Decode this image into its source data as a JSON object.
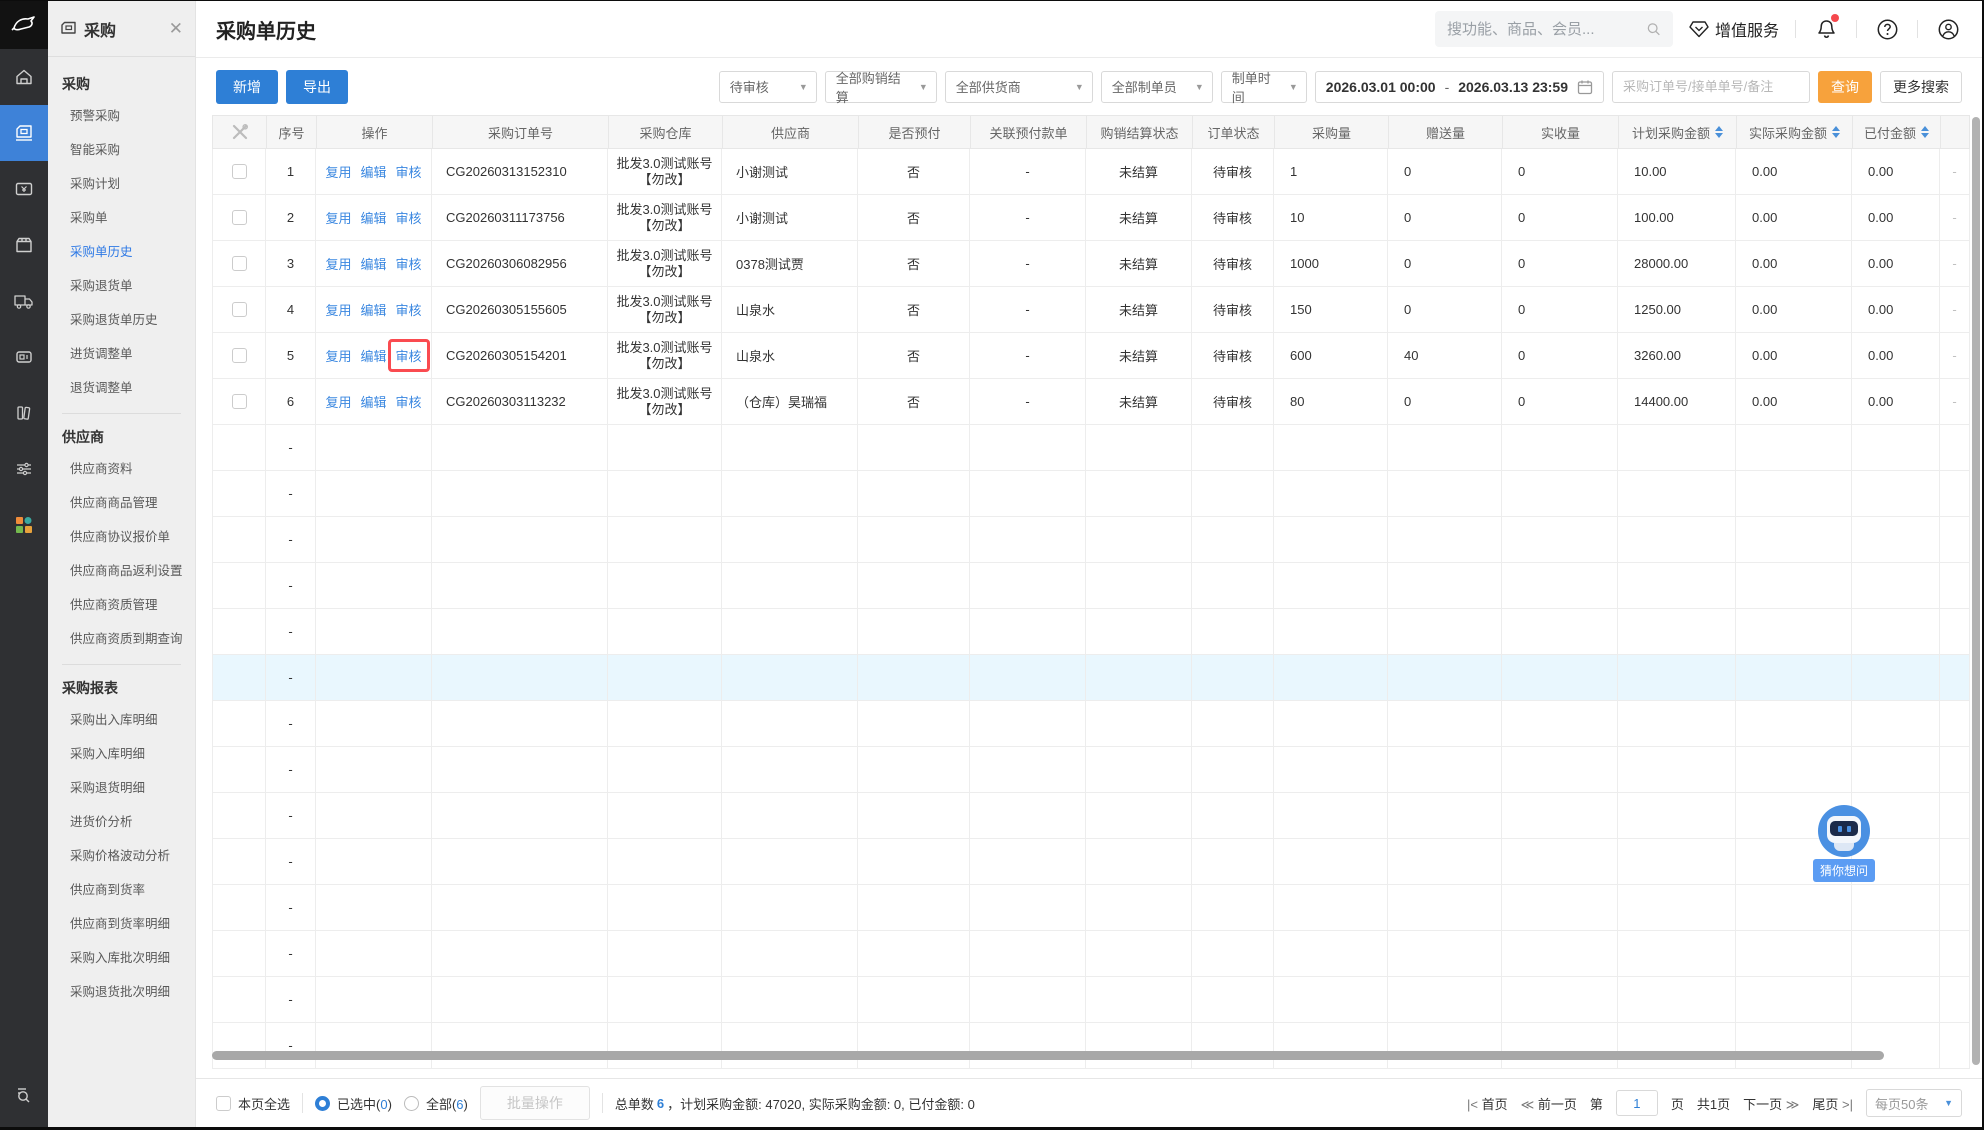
{
  "sidebar": {
    "title": "采购",
    "active_item": "采购单历史",
    "sections": [
      {
        "header": "采购",
        "items": [
          "预警采购",
          "智能采购",
          "采购计划",
          "采购单",
          "采购单历史",
          "采购退货单",
          "采购退货单历史",
          "进货调整单",
          "退货调整单"
        ]
      },
      {
        "header": "供应商",
        "items": [
          "供应商资料",
          "供应商商品管理",
          "供应商协议报价单",
          "供应商商品返利设置",
          "供应商资质管理",
          "供应商资质到期查询"
        ]
      },
      {
        "header": "采购报表",
        "items": [
          "采购出入库明细",
          "采购入库明细",
          "采购退货明细",
          "进货价分析",
          "采购价格波动分析",
          "供应商到货率",
          "供应商到货率明细",
          "采购入库批次明细",
          "采购退货批次明细"
        ]
      }
    ]
  },
  "header": {
    "page_title": "采购单历史",
    "search_placeholder": "搜功能、商品、会员...",
    "vas_label": "增值服务"
  },
  "toolbar": {
    "add_label": "新增",
    "export_label": "导出",
    "filters": [
      "待审核",
      "全部购销结算",
      "全部供货商",
      "全部制单员",
      "制单时间"
    ],
    "date_start": "2026.03.01 00:00",
    "date_separator": "-",
    "date_end": "2026.03.13 23:59",
    "order_input_placeholder": "采购订单号/接单单号/备注",
    "query_label": "查询",
    "more_search_label": "更多搜索"
  },
  "table": {
    "columns": [
      "序号",
      "操作",
      "采购订单号",
      "采购仓库",
      "供应商",
      "是否预付",
      "关联预付款单",
      "购销结算状态",
      "订单状态",
      "采购量",
      "赠送量",
      "实收量",
      "计划采购金额",
      "实际采购金额",
      "已付金额"
    ],
    "sortable_columns": [
      "计划采购金额",
      "实际采购金额",
      "已付金额"
    ],
    "action_labels": [
      "复用",
      "编辑",
      "审核"
    ],
    "rows": [
      {
        "seq": "1",
        "order_no": "CG20260313152310",
        "warehouse": "批发3.0测试账号【勿改】",
        "supplier": "小谢测试",
        "prepaid": "否",
        "prepay_doc": "-",
        "settle_status": "未结算",
        "order_status": "待审核",
        "qty": "1",
        "gift_qty": "0",
        "received_qty": "0",
        "planned_amount": "10.00",
        "actual_amount": "0.00",
        "paid_amount": "0.00",
        "tail": "-",
        "annotated_action": ""
      },
      {
        "seq": "2",
        "order_no": "CG20260311173756",
        "warehouse": "批发3.0测试账号【勿改】",
        "supplier": "小谢测试",
        "prepaid": "否",
        "prepay_doc": "-",
        "settle_status": "未结算",
        "order_status": "待审核",
        "qty": "10",
        "gift_qty": "0",
        "received_qty": "0",
        "planned_amount": "100.00",
        "actual_amount": "0.00",
        "paid_amount": "0.00",
        "tail": "-",
        "annotated_action": ""
      },
      {
        "seq": "3",
        "order_no": "CG20260306082956",
        "warehouse": "批发3.0测试账号【勿改】",
        "supplier": "0378测试贾",
        "prepaid": "否",
        "prepay_doc": "-",
        "settle_status": "未结算",
        "order_status": "待审核",
        "qty": "1000",
        "gift_qty": "0",
        "received_qty": "0",
        "planned_amount": "28000.00",
        "actual_amount": "0.00",
        "paid_amount": "0.00",
        "tail": "-",
        "annotated_action": ""
      },
      {
        "seq": "4",
        "order_no": "CG20260305155605",
        "warehouse": "批发3.0测试账号【勿改】",
        "supplier": "山泉水",
        "prepaid": "否",
        "prepay_doc": "-",
        "settle_status": "未结算",
        "order_status": "待审核",
        "qty": "150",
        "gift_qty": "0",
        "received_qty": "0",
        "planned_amount": "1250.00",
        "actual_amount": "0.00",
        "paid_amount": "0.00",
        "tail": "-",
        "annotated_action": ""
      },
      {
        "seq": "5",
        "order_no": "CG20260305154201",
        "warehouse": "批发3.0测试账号【勿改】",
        "supplier": "山泉水",
        "prepaid": "否",
        "prepay_doc": "-",
        "settle_status": "未结算",
        "order_status": "待审核",
        "qty": "600",
        "gift_qty": "40",
        "received_qty": "0",
        "planned_amount": "3260.00",
        "actual_amount": "0.00",
        "paid_amount": "0.00",
        "tail": "-",
        "annotated_action": "审核"
      },
      {
        "seq": "6",
        "order_no": "CG20260303113232",
        "warehouse": "批发3.0测试账号【勿改】",
        "supplier": "（仓库）昊瑞福",
        "prepaid": "否",
        "prepay_doc": "-",
        "settle_status": "未结算",
        "order_status": "待审核",
        "qty": "80",
        "gift_qty": "0",
        "received_qty": "0",
        "planned_amount": "14400.00",
        "actual_amount": "0.00",
        "paid_amount": "0.00",
        "tail": "-",
        "annotated_action": ""
      }
    ],
    "empty_rows": {
      "count": 14,
      "placeholder": "-",
      "highlighted_index": 5
    }
  },
  "footer": {
    "select_all_label": "本页全选",
    "selected_label": "已选中(",
    "selected_count": "0",
    "selected_close": ")",
    "all_label": "全部(",
    "all_count": "6",
    "all_close": ")",
    "batch_label": "批量操作",
    "summary_prefix": "总单数",
    "total_count": "6",
    "summary_rest": "，计划采购金额: 47020, 实际采购金额: 0, 已付金额: 0",
    "pagination": {
      "first": "首页",
      "prev": "前一页",
      "page_pre": "第",
      "page_value": "1",
      "page_post": "页",
      "total_pages": "共1页",
      "next": "下一页",
      "last": "尾页",
      "page_size": "每页50条"
    }
  },
  "assistant": {
    "label": "猜你想问"
  },
  "colors": {
    "accent_blue": "#2e7fd6",
    "link_blue": "#3a87e0",
    "query_orange": "#f7a23c",
    "annotation_red": "#fa4b50",
    "row_highlight": "#e9f7fe",
    "rail_active": "#3e82d8"
  }
}
